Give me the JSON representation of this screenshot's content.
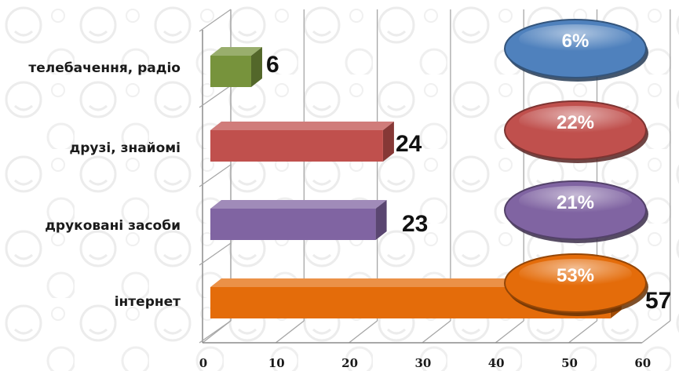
{
  "chart_data": {
    "type": "bar",
    "orientation": "horizontal",
    "categories": [
      "телебачення, радіо",
      "друзі, знайомі",
      "друковані засоби",
      "інтернет"
    ],
    "values": [
      6,
      24,
      23,
      57
    ],
    "value_labels": [
      "6",
      "24",
      "23",
      "57"
    ],
    "percent_labels": [
      "6%",
      "22%",
      "21%",
      "53%"
    ],
    "bar_colors": [
      "#77933c",
      "#c0504d",
      "#8064a2",
      "#e46c0a"
    ],
    "badge_colors": [
      "#4f81bd",
      "#c0504d",
      "#8064a2",
      "#e46c0a"
    ],
    "x_ticks": [
      "0",
      "10",
      "20",
      "30",
      "40",
      "50",
      "60"
    ],
    "xlim": [
      0,
      60
    ],
    "grid": true,
    "legend": "none",
    "style": "3d"
  }
}
